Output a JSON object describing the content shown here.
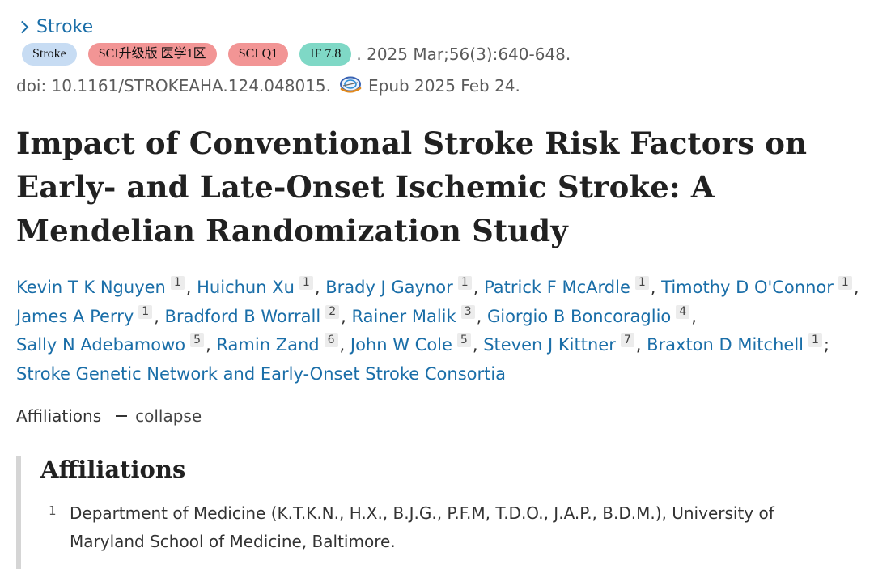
{
  "journal": {
    "name": "Stroke"
  },
  "badges": [
    {
      "label": "Stroke",
      "color": "#c7dcf3"
    },
    {
      "label": "SCI升级版 医学1区",
      "color": "#f29595"
    },
    {
      "label": "SCI Q1",
      "color": "#f29595"
    },
    {
      "label": "IF 7.8",
      "color": "#7fd8c6"
    }
  ],
  "citation": ". 2025 Mar;56(3):640-648.",
  "doi_text": "doi: 10.1161/STROKEAHA.124.048015.",
  "epub": "Epub 2025 Feb 24.",
  "title": "Impact of Conventional Stroke Risk Factors on Early- and Late-Onset Ischemic Stroke: A Mendelian Randomization Study",
  "authors": [
    {
      "name": "Kevin T K Nguyen",
      "aff": "1",
      "sep": ", "
    },
    {
      "name": "Huichun Xu",
      "aff": "1",
      "sep": ", "
    },
    {
      "name": "Brady J Gaynor",
      "aff": "1",
      "sep": ", "
    },
    {
      "name": "Patrick F McArdle",
      "aff": "1",
      "sep": ", "
    },
    {
      "name": "Timothy D O'Connor",
      "aff": "1",
      "sep": ","
    },
    {
      "name": "James A Perry",
      "aff": "1",
      "sep": ", "
    },
    {
      "name": "Bradford B Worrall",
      "aff": "2",
      "sep": ", "
    },
    {
      "name": "Rainer Malik",
      "aff": "3",
      "sep": ", "
    },
    {
      "name": "Giorgio B Boncoraglio",
      "aff": "4",
      "sep": ","
    },
    {
      "name": "Sally N Adebamowo",
      "aff": "5",
      "sep": ", "
    },
    {
      "name": "Ramin Zand",
      "aff": "6",
      "sep": ", "
    },
    {
      "name": "John W Cole",
      "aff": "5",
      "sep": ", "
    },
    {
      "name": "Steven J Kittner",
      "aff": "7",
      "sep": ", "
    },
    {
      "name": "Braxton D Mitchell",
      "aff": "1",
      "sep": ";"
    }
  ],
  "consortium": "Stroke Genetic Network and Early-Onset Stroke Consortia",
  "affiliations_toggle": {
    "label": "Affiliations",
    "action": "collapse"
  },
  "affiliations": {
    "heading": "Affiliations",
    "items": [
      {
        "num": "1",
        "text": "Department of Medicine (K.T.K.N., H.X., B.J.G., P.F.M, T.D.O., J.A.P., B.D.M.), University of Maryland School of Medicine, Baltimore."
      }
    ]
  }
}
